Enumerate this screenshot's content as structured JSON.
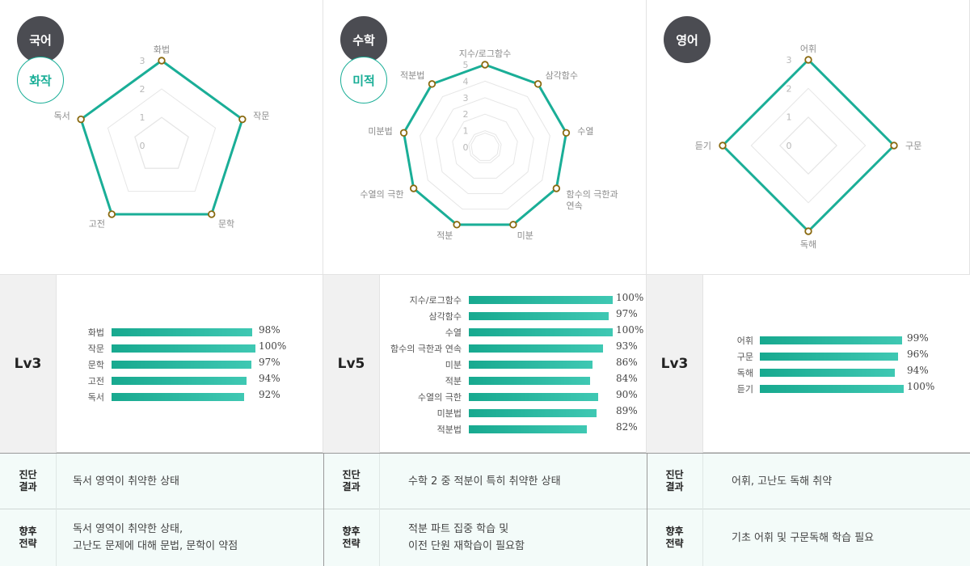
{
  "colors": {
    "accent": "#1aae97",
    "dark_circle": "#4b4c52",
    "marker": "#8a6a10"
  },
  "subjects": [
    {
      "name": "국어",
      "tag": "화작",
      "level": "Lv3",
      "chart_data": {
        "type": "radar",
        "axes": [
          "화법",
          "작문",
          "문학",
          "고전",
          "독서"
        ],
        "values": [
          3,
          3,
          3,
          3,
          3
        ],
        "ticks": [
          "0",
          "1",
          "2",
          "3"
        ],
        "range": [
          0,
          3
        ]
      },
      "bars": [
        {
          "label": "화법",
          "value": "98%",
          "pct": 98
        },
        {
          "label": "작문",
          "value": "100%",
          "pct": 100
        },
        {
          "label": "문학",
          "value": "97%",
          "pct": 97
        },
        {
          "label": "고전",
          "value": "94%",
          "pct": 94
        },
        {
          "label": "독서",
          "value": "92%",
          "pct": 92
        }
      ],
      "diagnosis_head": "진단\n결과",
      "diagnosis": "독서 영역이 취약한 상태",
      "strategy_head": "향후\n전략",
      "strategy": "독서 영역이 취약한 상태,\n고난도 문제에 대해 문법, 문학이 약점"
    },
    {
      "name": "수학",
      "tag": "미적",
      "level": "Lv5",
      "chart_data": {
        "type": "radar",
        "axes": [
          "지수/로그함수",
          "삼각함수",
          "수열",
          "함수의 극한과\n연속",
          "미분",
          "적분",
          "수열의 극한",
          "미분법",
          "적분법"
        ],
        "values": [
          5,
          5,
          5,
          5,
          5,
          5,
          5,
          5,
          5
        ],
        "ticks": [
          "0",
          "1",
          "2",
          "3",
          "4",
          "5"
        ],
        "range": [
          0,
          5
        ]
      },
      "bars": [
        {
          "label": "지수/로그함수",
          "value": "100%",
          "pct": 100
        },
        {
          "label": "삼각함수",
          "value": "97%",
          "pct": 97
        },
        {
          "label": "수열",
          "value": "100%",
          "pct": 100
        },
        {
          "label": "함수의 극한과 연속",
          "value": "93%",
          "pct": 93
        },
        {
          "label": "미분",
          "value": "86%",
          "pct": 86
        },
        {
          "label": "적분",
          "value": "84%",
          "pct": 84
        },
        {
          "label": "수열의 극한",
          "value": "90%",
          "pct": 90
        },
        {
          "label": "미분법",
          "value": "89%",
          "pct": 89
        },
        {
          "label": "적분법",
          "value": "82%",
          "pct": 82
        }
      ],
      "diagnosis_head": "진단\n결과",
      "diagnosis": "수학 2 중 적분이 특히 취약한 상태",
      "strategy_head": "향후\n전략",
      "strategy": "적분 파트 집중 학습 및\n이전 단원 재학습이 필요함"
    },
    {
      "name": "영어",
      "tag": "",
      "level": "Lv3",
      "chart_data": {
        "type": "radar",
        "axes": [
          "어휘",
          "구문",
          "독해",
          "듣기"
        ],
        "values": [
          3,
          3,
          3,
          3
        ],
        "ticks": [
          "0",
          "1",
          "2",
          "3"
        ],
        "range": [
          0,
          3
        ]
      },
      "bars": [
        {
          "label": "어휘",
          "value": "99%",
          "pct": 99
        },
        {
          "label": "구문",
          "value": "96%",
          "pct": 96
        },
        {
          "label": "독해",
          "value": "94%",
          "pct": 94
        },
        {
          "label": "듣기",
          "value": "100%",
          "pct": 100
        }
      ],
      "diagnosis_head": "진단\n결과",
      "diagnosis": "어휘, 고난도 독해 취약",
      "strategy_head": "향후\n전략",
      "strategy": "기초 어휘 및 구문독해 학습 필요"
    }
  ]
}
